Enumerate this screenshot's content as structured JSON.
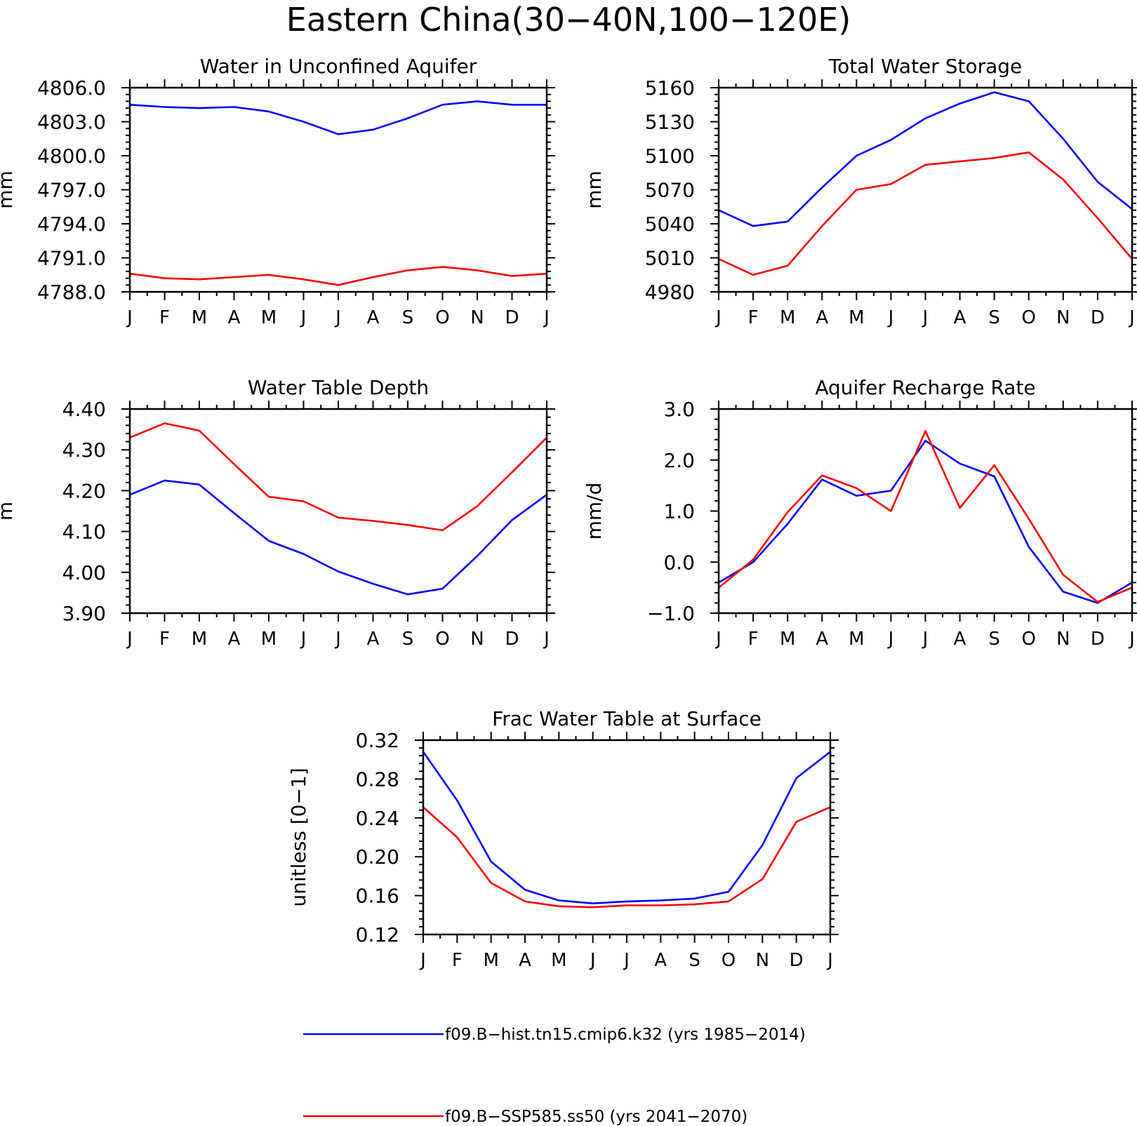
{
  "figure": {
    "title": "Eastern China(30−40N,100−120E)",
    "series_colors": [
      "#0000ff",
      "#ff0000"
    ]
  },
  "legend": [
    {
      "label": "f09.B−hist.tn15.cmip6.k32 (yrs 1985−2014)",
      "color": "#0000ff"
    },
    {
      "label": "f09.B−SSP585.ss50 (yrs 2041−2070)",
      "color": "#ff0000"
    }
  ],
  "chart_data": [
    {
      "type": "line",
      "title": "Water in Unconfined Aquifer",
      "ylabel": "mm",
      "categories": [
        "J",
        "F",
        "M",
        "A",
        "M",
        "J",
        "J",
        "A",
        "S",
        "O",
        "N",
        "D",
        "J"
      ],
      "ylim": [
        4788.0,
        4806.0
      ],
      "yticks": [
        4788.0,
        4791.0,
        4794.0,
        4797.0,
        4800.0,
        4803.0,
        4806.0
      ],
      "ytick_labels": [
        "4788.0",
        "4791.0",
        "4794.0",
        "4797.0",
        "4800.0",
        "4803.0",
        "4806.0"
      ],
      "series": [
        {
          "values": [
            4804.5,
            4804.3,
            4804.2,
            4804.3,
            4803.9,
            4803.0,
            4801.9,
            4802.3,
            4803.3,
            4804.5,
            4804.8,
            4804.5,
            4804.5
          ]
        },
        {
          "values": [
            4789.6,
            4789.2,
            4789.1,
            4789.3,
            4789.5,
            4789.1,
            4788.6,
            4789.3,
            4789.9,
            4790.2,
            4789.9,
            4789.4,
            4789.6
          ]
        }
      ]
    },
    {
      "type": "line",
      "title": "Total Water Storage",
      "ylabel": "mm",
      "categories": [
        "J",
        "F",
        "M",
        "A",
        "M",
        "J",
        "J",
        "A",
        "S",
        "O",
        "N",
        "D",
        "J"
      ],
      "ylim": [
        4980,
        5160
      ],
      "yticks": [
        4980,
        5010,
        5040,
        5070,
        5100,
        5130,
        5160
      ],
      "ytick_labels": [
        "4980",
        "5010",
        "5040",
        "5070",
        "5100",
        "5130",
        "5160"
      ],
      "series": [
        {
          "values": [
            5052,
            5038,
            5042,
            5072,
            5100,
            5114,
            5133,
            5146,
            5156,
            5148,
            5115,
            5077,
            5053
          ]
        },
        {
          "values": [
            5009,
            4995,
            5003,
            5038,
            5070,
            5075,
            5092,
            5095,
            5098,
            5103,
            5079,
            5045,
            5009
          ]
        }
      ]
    },
    {
      "type": "line",
      "title": "Water Table Depth",
      "ylabel": "m",
      "categories": [
        "J",
        "F",
        "M",
        "A",
        "M",
        "J",
        "J",
        "A",
        "S",
        "O",
        "N",
        "D",
        "J"
      ],
      "ylim": [
        3.9,
        4.4
      ],
      "yticks": [
        3.9,
        4.0,
        4.1,
        4.2,
        4.3,
        4.4
      ],
      "ytick_labels": [
        "3.90",
        "4.00",
        "4.10",
        "4.20",
        "4.30",
        "4.40"
      ],
      "series": [
        {
          "values": [
            4.19,
            4.225,
            4.215,
            4.145,
            4.077,
            4.045,
            4.002,
            3.972,
            3.946,
            3.96,
            4.04,
            4.128,
            4.19
          ]
        },
        {
          "values": [
            4.33,
            4.365,
            4.347,
            4.265,
            4.185,
            4.174,
            4.134,
            4.126,
            4.116,
            4.103,
            4.162,
            4.245,
            4.33
          ]
        }
      ]
    },
    {
      "type": "line",
      "title": "Aquifer Recharge Rate",
      "ylabel": "mm/d",
      "categories": [
        "J",
        "F",
        "M",
        "A",
        "M",
        "J",
        "J",
        "A",
        "S",
        "O",
        "N",
        "D",
        "J"
      ],
      "ylim": [
        -1.0,
        3.0
      ],
      "yticks": [
        -1.0,
        0.0,
        1.0,
        2.0,
        3.0
      ],
      "ytick_labels": [
        "−1.0",
        "0.0",
        "1.0",
        "2.0",
        "3.0"
      ],
      "series": [
        {
          "values": [
            -0.4,
            0.0,
            0.75,
            1.62,
            1.3,
            1.4,
            2.38,
            1.93,
            1.68,
            0.3,
            -0.58,
            -0.8,
            -0.4
          ]
        },
        {
          "values": [
            -0.5,
            0.05,
            0.98,
            1.7,
            1.45,
            1.0,
            2.57,
            1.06,
            1.9,
            0.85,
            -0.25,
            -0.78,
            -0.5
          ]
        }
      ]
    },
    {
      "type": "line",
      "title": "Frac Water Table at Surface",
      "ylabel": "unitless [0−1]",
      "categories": [
        "J",
        "F",
        "M",
        "A",
        "M",
        "J",
        "J",
        "A",
        "S",
        "O",
        "N",
        "D",
        "J"
      ],
      "ylim": [
        0.12,
        0.32
      ],
      "yticks": [
        0.12,
        0.16,
        0.2,
        0.24,
        0.28,
        0.32
      ],
      "ytick_labels": [
        "0.12",
        "0.16",
        "0.20",
        "0.24",
        "0.28",
        "0.32"
      ],
      "series": [
        {
          "values": [
            0.308,
            0.258,
            0.195,
            0.166,
            0.155,
            0.152,
            0.154,
            0.155,
            0.157,
            0.164,
            0.212,
            0.281,
            0.308
          ]
        },
        {
          "values": [
            0.251,
            0.22,
            0.173,
            0.154,
            0.149,
            0.148,
            0.15,
            0.15,
            0.151,
            0.154,
            0.177,
            0.236,
            0.251
          ]
        }
      ]
    }
  ]
}
